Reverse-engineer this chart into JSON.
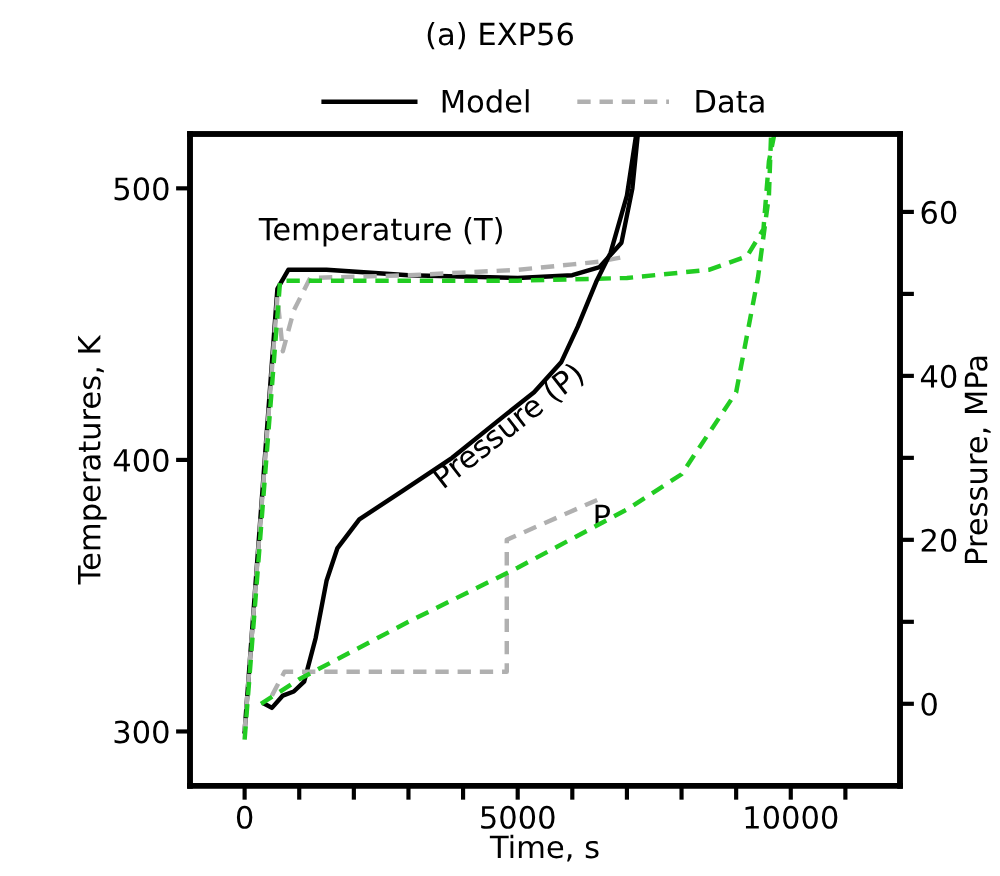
{
  "chart_data": {
    "type": "line",
    "title": "(a) EXP56",
    "xlabel": "Time, s",
    "ylabel": "Temperatures, K",
    "y2label": "Pressure, MPa",
    "xlim": [
      -1000,
      12000
    ],
    "xticks": [
      0,
      {
        "value": 1000,
        "label": null
      },
      {
        "value": 2000,
        "label": null
      },
      {
        "value": 3000,
        "label": null
      },
      {
        "value": 4000,
        "label": null
      },
      5000,
      {
        "value": 6000,
        "label": null
      },
      {
        "value": 7000,
        "label": null
      },
      {
        "value": 8000,
        "label": null
      },
      {
        "value": 9000,
        "label": null
      },
      10000,
      {
        "value": 11000,
        "label": null
      }
    ],
    "ylim": [
      280,
      520
    ],
    "yticks": [
      300,
      400,
      500
    ],
    "y2lim": [
      -10,
      69.5
    ],
    "y2ticks": [
      0,
      {
        "value": 10,
        "label": null
      },
      20,
      {
        "value": 30,
        "label": null
      },
      40,
      {
        "value": 50,
        "label": null
      },
      60
    ],
    "grid": false,
    "legend": "top",
    "marker": "none",
    "series": [
      {
        "name": "Model",
        "color": "#000000",
        "line_style": "solid",
        "x": [
          0,
          600,
          800,
          1500,
          3000,
          5000,
          6000,
          6500,
          6900,
          7100,
          7200
        ],
        "values": [
          300,
          463,
          470,
          470,
          468,
          467,
          468,
          471,
          480,
          500,
          520
        ]
      },
      {
        "name": "Data",
        "color": "#b0b0b0",
        "line_style": "dashed",
        "x": [
          0,
          600,
          700,
          900,
          1200,
          3000,
          5000,
          6000,
          6500,
          7000
        ],
        "values": [
          300,
          460,
          440,
          455,
          467,
          468,
          470,
          472,
          473,
          475
        ]
      },
      {
        "color": "#22cc22",
        "line_style": "dashed",
        "x": [
          0,
          650,
          2000,
          5000,
          7000,
          8500,
          9200,
          9500,
          9600,
          9700
        ],
        "values": [
          297,
          466,
          466,
          466,
          467,
          470,
          475,
          485,
          510,
          520
        ]
      },
      {
        "color": "#000000",
        "line_style": "solid",
        "axis": "y2",
        "x": [
          364,
          500,
          700,
          900,
          1090,
          1300,
          1500,
          1700,
          2100,
          2900,
          3800,
          4730,
          5300,
          5800,
          6100,
          6440,
          6700,
          7000,
          7160
        ],
        "values": [
          0,
          -0.5,
          1,
          1.5,
          2.7,
          8,
          15,
          19,
          22.5,
          26,
          30,
          35,
          38,
          41.7,
          46,
          51.5,
          55,
          62,
          69
        ]
      },
      {
        "color": "#b0b0b0",
        "line_style": "dashed",
        "axis": "y2",
        "x": [
          500,
          730,
          4800,
          4800,
          6500
        ],
        "values": [
          1,
          3.9,
          3.9,
          20,
          25
        ]
      },
      {
        "color": "#22cc22",
        "line_style": "dashed",
        "axis": "y2",
        "x": [
          300,
          1000,
          3000,
          5000,
          7000,
          8000,
          9000,
          9400,
          9600,
          9640
        ],
        "values": [
          0,
          3,
          10,
          16.6,
          23.7,
          28,
          38,
          52,
          62,
          69.5
        ]
      }
    ],
    "annotations": [
      "Temperature (T)",
      "Pressure (P)",
      "P"
    ]
  }
}
